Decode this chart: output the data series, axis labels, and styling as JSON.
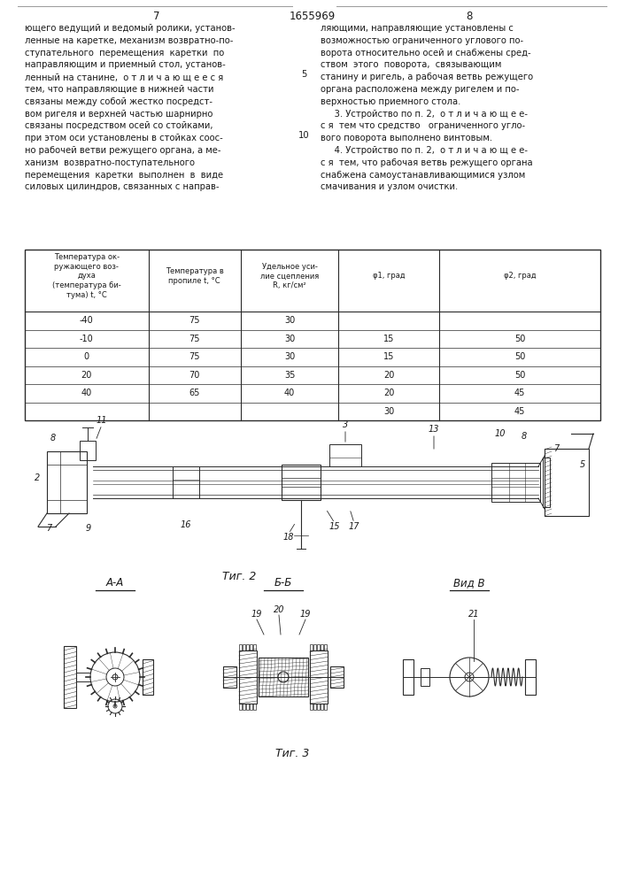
{
  "page_number_left": "7",
  "page_number_center": "1655969",
  "page_number_right": "8",
  "left_text_lines": [
    "ющего ведущий и ведомый ролики, установ-",
    "ленные на каретке, механизм возвратно-по-",
    "ступательного  перемещения  каретки  по",
    "направляющим и приемный стол, установ-",
    "ленный на станине,  о т л и ч а ю щ е е с я",
    "тем, что направляющие в нижней части",
    "связаны между собой жестко посредст-",
    "вом ригеля и верхней частью шарнирно",
    "связаны посредством осей со стойками,",
    "при этом оси установлены в стойках соос-",
    "но рабочей ветви режущего органа, а ме-",
    "ханизм  возвратно-поступательного",
    "перемещения  каретки  выполнен  в  виде",
    "силовых цилиндров, связанных с направ-"
  ],
  "right_text_lines": [
    "ляющими, направляющие установлены с",
    "возможностью ограниченного углового по-",
    "ворота относительно осей и снабжены сред-",
    "ством  этого  поворота,  связывающим",
    "станину и ригель, а рабочая ветвь режущего",
    "органа расположена между ригелем и по-",
    "верхностью приемного стола.",
    "     3. Устройство по п. 2,  о т л и ч а ю щ е е-",
    "с я  тем что средство   ограниченного угло-",
    "вого поворота выполнено винтовым.",
    "     4. Устройство по п. 2,  о т л и ч а ю щ е е-",
    "с я  тем, что рабочая ветвь режущего органа",
    "снабжена самоустанавливающимися узлом",
    "смачивания и узлом очистки."
  ],
  "col_num_right": "5",
  "col_num_right2": "10",
  "table_col_headers": [
    "Температура ок-\nружающего воз-\nдуха\n(температура би-\nтума) t, °C",
    "Температура в\nпропиле t, °C",
    "Удельное уси-\nлие сцепления\nR, кг/см²",
    "φ1, град",
    "φ2, град"
  ],
  "table_rows": [
    [
      "-40",
      "75",
      "30",
      "",
      ""
    ],
    [
      "-10",
      "75",
      "30",
      "15",
      "50"
    ],
    [
      "0",
      "75",
      "30",
      "15",
      "50"
    ],
    [
      "20",
      "70",
      "35",
      "20",
      "50"
    ],
    [
      "40",
      "65",
      "40",
      "20",
      "45"
    ],
    [
      "",
      "",
      "",
      "30",
      "45"
    ]
  ],
  "fig2_caption": "Τиг. 2",
  "fig3_caption": "Τиг. 3",
  "fig3_title_AA": "А-А",
  "fig3_title_BB": "Б-Б",
  "fig3_title_VB": "Вид В",
  "background_color": "#ffffff",
  "text_color": "#1a1a1a",
  "line_color": "#2a2a2a"
}
